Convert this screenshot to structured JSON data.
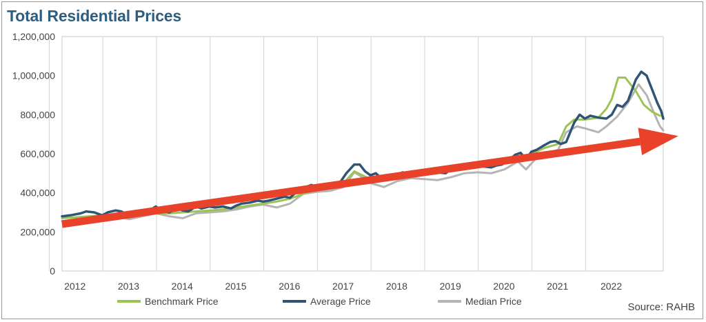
{
  "chart_data": {
    "type": "line",
    "title": "Total Residential Prices",
    "source": "Source: RAHB",
    "y_ticks": [
      "0",
      "200,000",
      "400,000",
      "600,000",
      "800,000",
      "1,000,000",
      "1,200,000"
    ],
    "y_tick_values": [
      0,
      200000,
      400000,
      600000,
      800000,
      1000000,
      1200000
    ],
    "ylim": [
      0,
      1200000
    ],
    "x_ticks": [
      "2012",
      "2013",
      "2014",
      "2015",
      "2016",
      "2017",
      "2018",
      "2019",
      "2020",
      "2021",
      "2022"
    ],
    "xlim": [
      2011.75,
      2022.96
    ],
    "grid": "vertical",
    "legend_position": "bottom",
    "colors": {
      "benchmark": "#9bc455",
      "average": "#2f5474",
      "median": "#b4b4b4",
      "trend_arrow": "#e8422a"
    },
    "series": [
      {
        "name": "Benchmark Price",
        "points": [
          [
            2011.75,
            270000
          ],
          [
            2012.0,
            275000
          ],
          [
            2012.25,
            280000
          ],
          [
            2012.5,
            285000
          ],
          [
            2012.75,
            285000
          ],
          [
            2013.0,
            285000
          ],
          [
            2013.25,
            290000
          ],
          [
            2013.5,
            295000
          ],
          [
            2013.75,
            295000
          ],
          [
            2014.0,
            300000
          ],
          [
            2014.25,
            305000
          ],
          [
            2014.5,
            310000
          ],
          [
            2014.75,
            315000
          ],
          [
            2015.0,
            325000
          ],
          [
            2015.25,
            335000
          ],
          [
            2015.5,
            345000
          ],
          [
            2015.75,
            355000
          ],
          [
            2016.0,
            370000
          ],
          [
            2016.25,
            395000
          ],
          [
            2016.5,
            415000
          ],
          [
            2016.75,
            430000
          ],
          [
            2017.0,
            450000
          ],
          [
            2017.2,
            510000
          ],
          [
            2017.35,
            490000
          ],
          [
            2017.5,
            470000
          ],
          [
            2017.75,
            465000
          ],
          [
            2018.0,
            475000
          ],
          [
            2018.25,
            490000
          ],
          [
            2018.5,
            495000
          ],
          [
            2018.75,
            500000
          ],
          [
            2019.0,
            510000
          ],
          [
            2019.25,
            520000
          ],
          [
            2019.5,
            530000
          ],
          [
            2019.75,
            545000
          ],
          [
            2020.0,
            560000
          ],
          [
            2020.25,
            575000
          ],
          [
            2020.5,
            600000
          ],
          [
            2020.75,
            630000
          ],
          [
            2021.0,
            650000
          ],
          [
            2021.15,
            740000
          ],
          [
            2021.3,
            775000
          ],
          [
            2021.5,
            775000
          ],
          [
            2021.75,
            785000
          ],
          [
            2021.9,
            830000
          ],
          [
            2022.0,
            880000
          ],
          [
            2022.12,
            990000
          ],
          [
            2022.25,
            990000
          ],
          [
            2022.45,
            920000
          ],
          [
            2022.6,
            850000
          ],
          [
            2022.75,
            815000
          ],
          [
            2022.9,
            795000
          ]
        ]
      },
      {
        "name": "Average Price",
        "points": [
          [
            2011.75,
            280000
          ],
          [
            2011.9,
            285000
          ],
          [
            2012.1,
            295000
          ],
          [
            2012.2,
            305000
          ],
          [
            2012.35,
            300000
          ],
          [
            2012.5,
            285000
          ],
          [
            2012.6,
            300000
          ],
          [
            2012.75,
            310000
          ],
          [
            2012.85,
            305000
          ],
          [
            2013.0,
            285000
          ],
          [
            2013.1,
            290000
          ],
          [
            2013.2,
            300000
          ],
          [
            2013.35,
            305000
          ],
          [
            2013.5,
            330000
          ],
          [
            2013.6,
            310000
          ],
          [
            2013.75,
            300000
          ],
          [
            2013.9,
            320000
          ],
          [
            2014.0,
            310000
          ],
          [
            2014.1,
            305000
          ],
          [
            2014.25,
            330000
          ],
          [
            2014.35,
            320000
          ],
          [
            2014.5,
            330000
          ],
          [
            2014.6,
            325000
          ],
          [
            2014.75,
            330000
          ],
          [
            2014.9,
            320000
          ],
          [
            2015.0,
            335000
          ],
          [
            2015.1,
            345000
          ],
          [
            2015.25,
            350000
          ],
          [
            2015.4,
            360000
          ],
          [
            2015.5,
            355000
          ],
          [
            2015.6,
            360000
          ],
          [
            2015.75,
            370000
          ],
          [
            2015.9,
            380000
          ],
          [
            2016.0,
            375000
          ],
          [
            2016.1,
            400000
          ],
          [
            2016.25,
            425000
          ],
          [
            2016.4,
            440000
          ],
          [
            2016.5,
            430000
          ],
          [
            2016.6,
            440000
          ],
          [
            2016.75,
            445000
          ],
          [
            2016.85,
            440000
          ],
          [
            2016.95,
            460000
          ],
          [
            2017.05,
            500000
          ],
          [
            2017.2,
            545000
          ],
          [
            2017.3,
            545000
          ],
          [
            2017.4,
            510000
          ],
          [
            2017.5,
            490000
          ],
          [
            2017.6,
            500000
          ],
          [
            2017.7,
            475000
          ],
          [
            2017.8,
            470000
          ],
          [
            2017.9,
            480000
          ],
          [
            2018.0,
            490000
          ],
          [
            2018.1,
            505000
          ],
          [
            2018.2,
            495000
          ],
          [
            2018.3,
            510000
          ],
          [
            2018.4,
            505000
          ],
          [
            2018.5,
            510000
          ],
          [
            2018.6,
            500000
          ],
          [
            2018.75,
            505000
          ],
          [
            2018.9,
            500000
          ],
          [
            2019.0,
            520000
          ],
          [
            2019.15,
            530000
          ],
          [
            2019.3,
            535000
          ],
          [
            2019.4,
            545000
          ],
          [
            2019.5,
            540000
          ],
          [
            2019.6,
            535000
          ],
          [
            2019.75,
            530000
          ],
          [
            2019.85,
            540000
          ],
          [
            2019.95,
            545000
          ],
          [
            2020.05,
            560000
          ],
          [
            2020.2,
            595000
          ],
          [
            2020.3,
            605000
          ],
          [
            2020.4,
            570000
          ],
          [
            2020.5,
            610000
          ],
          [
            2020.6,
            620000
          ],
          [
            2020.75,
            645000
          ],
          [
            2020.85,
            660000
          ],
          [
            2020.95,
            665000
          ],
          [
            2021.05,
            650000
          ],
          [
            2021.15,
            660000
          ],
          [
            2021.3,
            760000
          ],
          [
            2021.4,
            800000
          ],
          [
            2021.5,
            780000
          ],
          [
            2021.6,
            795000
          ],
          [
            2021.75,
            785000
          ],
          [
            2021.9,
            780000
          ],
          [
            2022.0,
            800000
          ],
          [
            2022.1,
            850000
          ],
          [
            2022.2,
            840000
          ],
          [
            2022.3,
            870000
          ],
          [
            2022.45,
            980000
          ],
          [
            2022.55,
            1020000
          ],
          [
            2022.65,
            1000000
          ],
          [
            2022.75,
            930000
          ],
          [
            2022.85,
            860000
          ],
          [
            2022.92,
            820000
          ],
          [
            2022.96,
            780000
          ]
        ]
      },
      {
        "name": "Median Price",
        "points": [
          [
            2011.75,
            255000
          ],
          [
            2012.0,
            260000
          ],
          [
            2012.25,
            275000
          ],
          [
            2012.5,
            270000
          ],
          [
            2012.75,
            280000
          ],
          [
            2013.0,
            265000
          ],
          [
            2013.25,
            280000
          ],
          [
            2013.5,
            295000
          ],
          [
            2013.75,
            280000
          ],
          [
            2014.0,
            270000
          ],
          [
            2014.25,
            295000
          ],
          [
            2014.5,
            300000
          ],
          [
            2014.75,
            305000
          ],
          [
            2015.0,
            315000
          ],
          [
            2015.25,
            330000
          ],
          [
            2015.5,
            340000
          ],
          [
            2015.75,
            325000
          ],
          [
            2016.0,
            345000
          ],
          [
            2016.25,
            395000
          ],
          [
            2016.5,
            405000
          ],
          [
            2016.75,
            410000
          ],
          [
            2017.0,
            430000
          ],
          [
            2017.2,
            505000
          ],
          [
            2017.35,
            480000
          ],
          [
            2017.5,
            450000
          ],
          [
            2017.75,
            430000
          ],
          [
            2018.0,
            460000
          ],
          [
            2018.25,
            475000
          ],
          [
            2018.5,
            470000
          ],
          [
            2018.75,
            465000
          ],
          [
            2019.0,
            480000
          ],
          [
            2019.25,
            500000
          ],
          [
            2019.5,
            505000
          ],
          [
            2019.75,
            500000
          ],
          [
            2020.0,
            520000
          ],
          [
            2020.25,
            560000
          ],
          [
            2020.4,
            520000
          ],
          [
            2020.6,
            580000
          ],
          [
            2020.75,
            600000
          ],
          [
            2021.0,
            620000
          ],
          [
            2021.15,
            710000
          ],
          [
            2021.35,
            740000
          ],
          [
            2021.5,
            730000
          ],
          [
            2021.75,
            710000
          ],
          [
            2021.9,
            740000
          ],
          [
            2022.1,
            790000
          ],
          [
            2022.3,
            860000
          ],
          [
            2022.5,
            955000
          ],
          [
            2022.65,
            900000
          ],
          [
            2022.8,
            800000
          ],
          [
            2022.9,
            740000
          ],
          [
            2022.96,
            720000
          ]
        ]
      }
    ],
    "annotations": [
      {
        "type": "trend-arrow",
        "from": [
          2011.75,
          240000
        ],
        "to": [
          2022.96,
          680000
        ]
      }
    ]
  }
}
